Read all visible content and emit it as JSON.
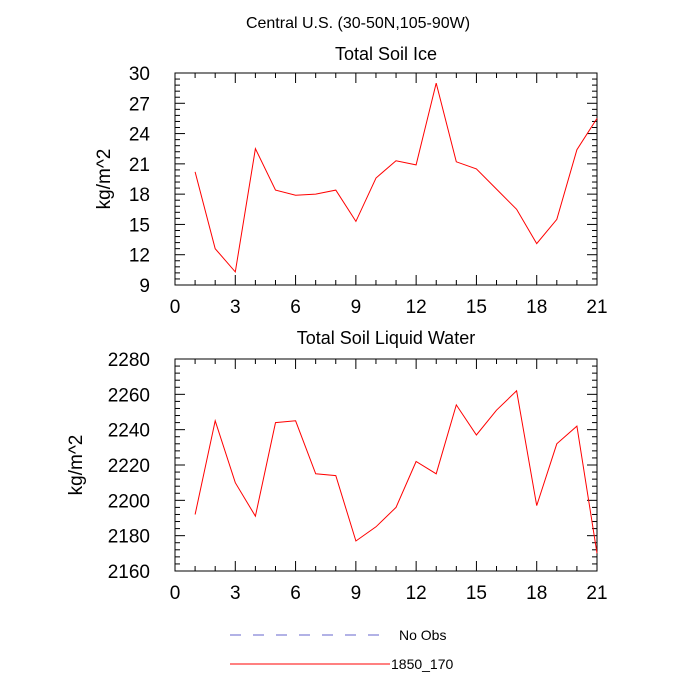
{
  "title": "Central U.S. (30-50N,105-90W)",
  "legend": [
    {
      "label": "No Obs",
      "color": "#6666cc",
      "dash": true
    },
    {
      "label": "1850_170",
      "color": "#ff0000",
      "dash": false
    }
  ],
  "chart_data": [
    {
      "type": "line",
      "title": "Total Soil Ice",
      "ylabel": "kg/m^2",
      "xlabel": "",
      "xlim": [
        0,
        21
      ],
      "ylim": [
        9,
        30
      ],
      "xticks": [
        0,
        3,
        6,
        9,
        12,
        15,
        18,
        21
      ],
      "yticks": [
        9,
        12,
        15,
        18,
        21,
        24,
        27,
        30
      ],
      "series": [
        {
          "name": "1850_170",
          "color": "#ff0000",
          "x": [
            1,
            2,
            3,
            4,
            5,
            6,
            7,
            8,
            9,
            10,
            11,
            12,
            13,
            14,
            15,
            16,
            17,
            18,
            19,
            20,
            21
          ],
          "values": [
            20.2,
            12.6,
            10.3,
            22.5,
            18.4,
            17.9,
            18.0,
            18.4,
            15.3,
            19.6,
            21.3,
            20.9,
            29.0,
            21.2,
            20.5,
            18.5,
            16.5,
            13.1,
            15.5,
            22.4,
            25.5
          ]
        }
      ]
    },
    {
      "type": "line",
      "title": "Total Soil Liquid Water",
      "ylabel": "kg/m^2",
      "xlabel": "",
      "xlim": [
        0,
        21
      ],
      "ylim": [
        2160,
        2280
      ],
      "xticks": [
        0,
        3,
        6,
        9,
        12,
        15,
        18,
        21
      ],
      "yticks": [
        2160,
        2180,
        2200,
        2220,
        2240,
        2260,
        2280
      ],
      "series": [
        {
          "name": "1850_170",
          "color": "#ff0000",
          "x": [
            1,
            2,
            3,
            4,
            5,
            6,
            7,
            8,
            9,
            10,
            11,
            12,
            13,
            14,
            15,
            16,
            17,
            18,
            19,
            20,
            21
          ],
          "values": [
            2192,
            2245,
            2210,
            2191,
            2244,
            2245,
            2215,
            2214,
            2177,
            2185,
            2196,
            2222,
            2215,
            2254,
            2237,
            2251,
            2262,
            2197,
            2232,
            2242,
            2170
          ]
        }
      ]
    }
  ]
}
